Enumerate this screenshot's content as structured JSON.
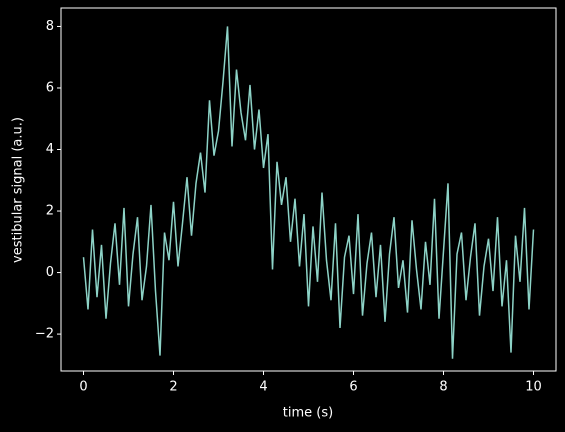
{
  "chart_data": {
    "type": "line",
    "xlabel": "time (s)",
    "ylabel": "vestibular signal (a.u.)",
    "x": [
      0,
      0.1,
      0.2,
      0.3,
      0.4,
      0.5,
      0.6,
      0.7,
      0.8,
      0.9,
      1,
      1.1,
      1.2,
      1.3,
      1.4,
      1.5,
      1.6,
      1.7,
      1.8,
      1.9,
      2,
      2.1,
      2.2,
      2.3,
      2.4,
      2.5,
      2.6,
      2.7,
      2.8,
      2.9,
      3,
      3.1,
      3.2,
      3.3,
      3.4,
      3.5,
      3.6,
      3.7,
      3.8,
      3.9,
      4,
      4.1,
      4.2,
      4.3,
      4.4,
      4.5,
      4.6,
      4.7,
      4.8,
      4.9,
      5,
      5.1,
      5.2,
      5.3,
      5.4,
      5.5,
      5.6,
      5.7,
      5.8,
      5.9,
      6,
      6.1,
      6.2,
      6.3,
      6.4,
      6.5,
      6.6,
      6.7,
      6.8,
      6.9,
      7,
      7.1,
      7.2,
      7.3,
      7.4,
      7.5,
      7.6,
      7.7,
      7.8,
      7.9,
      8,
      8.1,
      8.2,
      8.3,
      8.4,
      8.5,
      8.6,
      8.7,
      8.8,
      8.9,
      9,
      9.1,
      9.2,
      9.3,
      9.4,
      9.5,
      9.6,
      9.7,
      9.8,
      9.9,
      10
    ],
    "series": [
      {
        "color": "#8dd3c7",
        "values": [
          0.5,
          -1.2,
          1.4,
          -0.8,
          0.9,
          -1.5,
          0.3,
          1.6,
          -0.4,
          2.1,
          -1.1,
          0.6,
          1.8,
          -0.9,
          0.2,
          2.2,
          -0.6,
          -2.7,
          1.3,
          0.4,
          2.3,
          0.2,
          1.6,
          3.1,
          1.2,
          2.9,
          3.9,
          2.6,
          5.6,
          3.8,
          4.6,
          6.2,
          8.0,
          4.1,
          6.6,
          5.2,
          4.3,
          6.1,
          4.0,
          5.3,
          3.4,
          4.5,
          0.1,
          3.6,
          2.2,
          3.1,
          1.0,
          2.4,
          0.2,
          1.9,
          -1.1,
          1.5,
          -0.3,
          2.6,
          0.4,
          -0.9,
          1.6,
          -1.8,
          0.5,
          1.2,
          -0.7,
          1.9,
          -1.4,
          0.3,
          1.3,
          -0.8,
          0.9,
          -1.6,
          0.6,
          1.8,
          -0.5,
          0.4,
          -1.3,
          1.7,
          0.1,
          -1.2,
          1.0,
          -0.4,
          2.4,
          -1.5,
          0.7,
          2.9,
          -2.8,
          0.6,
          1.3,
          -0.9,
          0.5,
          1.6,
          -1.4,
          0.2,
          1.1,
          -0.6,
          1.8,
          -1.1,
          0.4,
          -2.6,
          1.2,
          -0.3,
          2.1,
          -1.2,
          1.4
        ]
      }
    ],
    "xlim": [
      -0.5,
      10.5
    ],
    "ylim": [
      -3.2,
      8.6
    ],
    "xticks": [
      0,
      2,
      4,
      6,
      8,
      10
    ],
    "yticks": [
      {
        "value": -2,
        "label": "−2"
      },
      0,
      2,
      4,
      6,
      8
    ],
    "grid": false
  }
}
